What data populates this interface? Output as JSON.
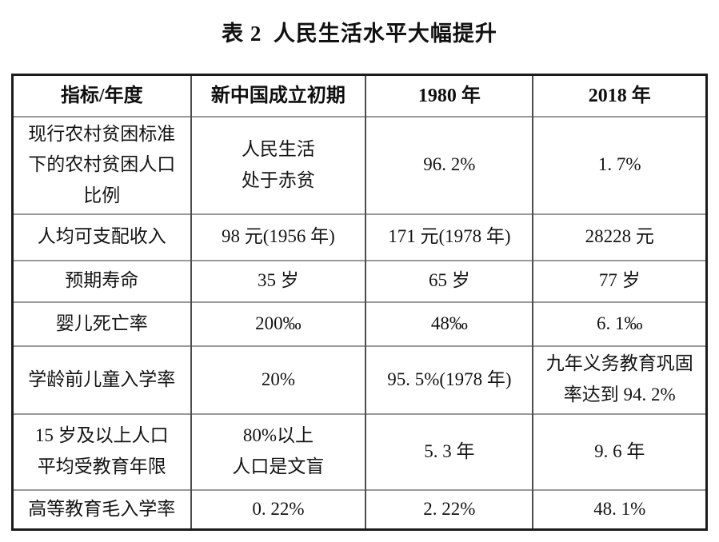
{
  "page": {
    "caption": "表 2 人民生活水平大幅提升"
  },
  "table": {
    "header": [
      "指标/年度",
      "新中国成立初期",
      "1980 年",
      "2018 年"
    ],
    "rows": [
      {
        "cells": [
          "现行农村贫困标准\n下的农村贫困人口\n比例",
          "人民生活\n处于赤贫",
          "96. 2%",
          "1. 7%"
        ]
      },
      {
        "cells": [
          "人均可支配收入",
          "98 元(1956 年)",
          "171 元(1978 年)",
          "28228 元"
        ]
      },
      {
        "cells": [
          "预期寿命",
          "35 岁",
          "65 岁",
          "77 岁"
        ]
      },
      {
        "cells": [
          "婴儿死亡率",
          "200‰",
          "48‰",
          "6. 1‰"
        ]
      },
      {
        "cells": [
          "学龄前儿童入学率",
          "20%",
          "95. 5%(1978 年)",
          "九年义务教育巩固\n率达到 94. 2%"
        ]
      },
      {
        "cells": [
          "15 岁及以上人口\n平均受教育年限",
          "80%以上\n人口是文盲",
          "5. 3 年",
          "9. 6 年"
        ]
      },
      {
        "cells": [
          "高等教育毛入学率",
          "0. 22%",
          "2. 22%",
          "48. 1%"
        ]
      }
    ]
  },
  "colors": {
    "text": "#141414",
    "border_outer": "#1b1b1b",
    "border_inner_vertical": "#4d4d4d",
    "border_inner_horizontal": "#9a9a9a",
    "background": "#ffffff"
  }
}
